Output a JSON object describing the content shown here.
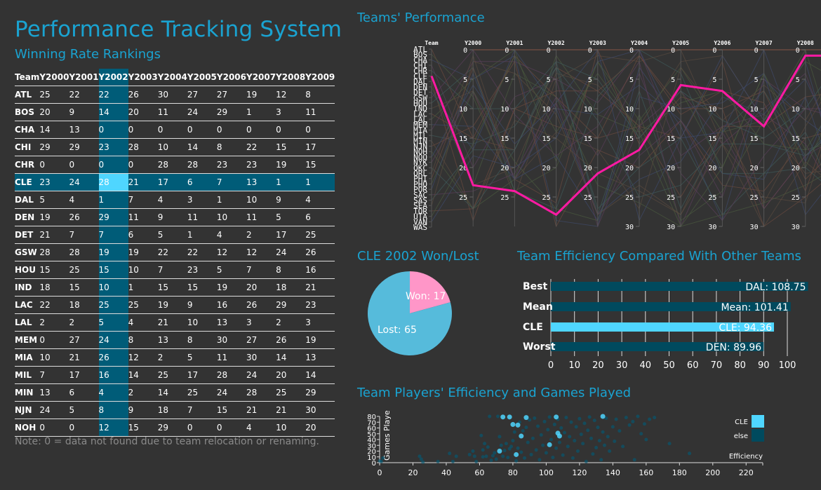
{
  "header": {
    "title": "Performance Tracking System",
    "subtitle": "Winning Rate Rankings"
  },
  "colors": {
    "accent": "#1aa3d1",
    "highlight_dark": "#005c78",
    "highlight_light": "#4fd6ff",
    "selected_line": "#ff1aa3",
    "pie_won": "#ff96c8",
    "pie_lost": "#56bbdb",
    "bar_other": "#004a5e"
  },
  "rankings": {
    "columns": [
      "Team",
      "Y2000",
      "Y2001",
      "Y2002",
      "Y2003",
      "Y2004",
      "Y2005",
      "Y2006",
      "Y2007",
      "Y2008",
      "Y2009"
    ],
    "highlight_column": "Y2002",
    "highlight_team": "CLE",
    "rows": [
      [
        "ATL",
        "25",
        "22",
        "22",
        "26",
        "30",
        "27",
        "27",
        "19",
        "12",
        "8"
      ],
      [
        "BOS",
        "20",
        "9",
        "14",
        "20",
        "11",
        "24",
        "29",
        "1",
        "3",
        "11"
      ],
      [
        "CHA",
        "14",
        "13",
        "0",
        "0",
        "0",
        "0",
        "0",
        "0",
        "0",
        "0"
      ],
      [
        "CHI",
        "29",
        "29",
        "23",
        "28",
        "10",
        "14",
        "8",
        "22",
        "15",
        "17"
      ],
      [
        "CHR",
        "0",
        "0",
        "0",
        "0",
        "28",
        "28",
        "23",
        "23",
        "19",
        "15"
      ],
      [
        "CLE",
        "23",
        "24",
        "28",
        "21",
        "17",
        "6",
        "7",
        "13",
        "1",
        "1"
      ],
      [
        "DAL",
        "5",
        "4",
        "1",
        "7",
        "4",
        "3",
        "1",
        "10",
        "9",
        "4"
      ],
      [
        "DEN",
        "19",
        "26",
        "29",
        "11",
        "9",
        "11",
        "10",
        "11",
        "5",
        "6"
      ],
      [
        "DET",
        "21",
        "7",
        "7",
        "6",
        "5",
        "1",
        "4",
        "2",
        "17",
        "25"
      ],
      [
        "GSW",
        "28",
        "28",
        "19",
        "19",
        "22",
        "22",
        "12",
        "12",
        "24",
        "26"
      ],
      [
        "HOU",
        "15",
        "25",
        "15",
        "10",
        "7",
        "23",
        "5",
        "7",
        "8",
        "16"
      ],
      [
        "IND",
        "18",
        "15",
        "10",
        "1",
        "15",
        "15",
        "19",
        "20",
        "18",
        "21"
      ],
      [
        "LAC",
        "22",
        "18",
        "25",
        "25",
        "19",
        "9",
        "16",
        "26",
        "29",
        "23"
      ],
      [
        "LAL",
        "2",
        "2",
        "5",
        "4",
        "21",
        "10",
        "13",
        "3",
        "2",
        "3"
      ],
      [
        "MEM",
        "0",
        "27",
        "24",
        "8",
        "13",
        "8",
        "30",
        "27",
        "26",
        "19"
      ],
      [
        "MIA",
        "10",
        "21",
        "26",
        "12",
        "2",
        "5",
        "11",
        "30",
        "14",
        "13"
      ],
      [
        "MIL",
        "7",
        "17",
        "16",
        "14",
        "25",
        "17",
        "28",
        "24",
        "20",
        "14"
      ],
      [
        "MIN",
        "13",
        "6",
        "4",
        "2",
        "14",
        "25",
        "24",
        "28",
        "25",
        "29"
      ],
      [
        "NJN",
        "24",
        "5",
        "8",
        "9",
        "18",
        "7",
        "15",
        "21",
        "21",
        "30"
      ],
      [
        "NOH",
        "0",
        "0",
        "12",
        "15",
        "29",
        "0",
        "0",
        "4",
        "10",
        "20"
      ]
    ],
    "note": "Note: 0 = data not found due to team relocation or renaming."
  },
  "chart_data": [
    {
      "type": "line",
      "subtype": "parallel-coordinates",
      "title": "Teams' Performance",
      "axes": [
        "Team",
        "Y2000",
        "Y2001",
        "Y2002",
        "Y2003",
        "Y2004",
        "Y2005",
        "Y2006",
        "Y2007",
        "Y2008",
        "Y2009"
      ],
      "team_axis_labels": [
        "ATL",
        "BOS",
        "CHA",
        "CHI",
        "CHR",
        "CLE",
        "DAL",
        "DEN",
        "DET",
        "GSW",
        "HOU",
        "IND",
        "LAC",
        "LAL",
        "MEM",
        "MIA",
        "MIL",
        "MIN",
        "NJN",
        "NOH",
        "NOO",
        "NYK",
        "OKC",
        "ORL",
        "PHI",
        "PHO",
        "POR",
        "SAC",
        "SAS",
        "SEA",
        "TOR",
        "UTA",
        "VAN",
        "WAS"
      ],
      "year_axis_ticks_short": [
        "0",
        "5",
        "10",
        "15",
        "20",
        "25"
      ],
      "year_axis_ticks_long": [
        "0",
        "5",
        "10",
        "15",
        "20",
        "25",
        "30"
      ],
      "ylim_short": [
        0,
        29
      ],
      "ylim_long": [
        0,
        30
      ],
      "highlight": {
        "name": "CLE",
        "values": [
          23,
          24,
          28,
          21,
          17,
          6,
          7,
          13,
          1,
          1
        ]
      },
      "background_series_count": 33
    },
    {
      "type": "pie",
      "title": "CLE 2002 Won/Lost",
      "slices": [
        {
          "label": "Won",
          "value": 17,
          "display": "Won: 17"
        },
        {
          "label": "Lost",
          "value": 65,
          "display": "Lost: 65"
        }
      ]
    },
    {
      "type": "bar",
      "orientation": "horizontal",
      "title": "Team Efficiency Compared With Other Teams",
      "categories": [
        "Best",
        "Mean",
        "CLE",
        "Worst"
      ],
      "values": [
        108.75,
        101.41,
        94.36,
        89.96
      ],
      "data_labels": [
        "DAL: 108.75",
        "Mean: 101.41",
        "CLE: 94.36",
        "DEN: 89.96"
      ],
      "xlim": [
        0,
        100
      ],
      "xticks": [
        "0",
        "10",
        "20",
        "30",
        "40",
        "50",
        "60",
        "70",
        "80",
        "90",
        "100"
      ],
      "grid": true
    },
    {
      "type": "scatter",
      "title": "Team Players' Efficiency and Games Played",
      "xlabel": "Efficiency",
      "ylabel": "Games Played",
      "xlim": [
        0,
        230
      ],
      "ylim": [
        0,
        82
      ],
      "xticks": [
        "0",
        "20",
        "40",
        "60",
        "80",
        "100",
        "120",
        "140",
        "160",
        "180",
        "200",
        "220"
      ],
      "yticks": [
        "0",
        "10",
        "20",
        "30",
        "40",
        "50",
        "60",
        "70",
        "80"
      ],
      "legend": {
        "position": "top-right",
        "entries": [
          "CLE",
          "else"
        ]
      },
      "series": [
        {
          "name": "CLE",
          "points": [
            [
              74,
              79
            ],
            [
              78,
              79
            ],
            [
              88,
              78
            ],
            [
              106,
              79
            ],
            [
              134,
              80
            ],
            [
              80,
              66
            ],
            [
              83,
              65
            ],
            [
              85,
              46
            ],
            [
              107,
              51
            ],
            [
              108,
              46
            ],
            [
              102,
              31
            ],
            [
              72,
              20
            ],
            [
              82,
              14
            ]
          ]
        },
        {
          "name": "else",
          "points": [
            [
              1,
              2
            ],
            [
              2,
              8
            ],
            [
              0,
              3
            ],
            [
              24,
              11
            ],
            [
              25,
              6
            ],
            [
              26,
              1
            ],
            [
              35,
              2
            ],
            [
              42,
              16
            ],
            [
              44,
              2
            ],
            [
              46,
              11
            ],
            [
              54,
              14
            ],
            [
              56,
              20
            ],
            [
              57,
              11
            ],
            [
              58,
              2
            ],
            [
              61,
              47
            ],
            [
              62,
              10
            ],
            [
              62,
              22
            ],
            [
              63,
              33
            ],
            [
              64,
              11
            ],
            [
              65,
              27
            ],
            [
              66,
              80
            ],
            [
              67,
              4
            ],
            [
              68,
              12
            ],
            [
              69,
              17
            ],
            [
              70,
              6
            ],
            [
              71,
              80
            ],
            [
              72,
              45
            ],
            [
              73,
              30
            ],
            [
              74,
              11
            ],
            [
              75,
              21
            ],
            [
              76,
              33
            ],
            [
              77,
              9
            ],
            [
              78,
              24
            ],
            [
              79,
              28
            ],
            [
              80,
              38
            ],
            [
              81,
              53
            ],
            [
              82,
              3
            ],
            [
              83,
              25
            ],
            [
              84,
              70
            ],
            [
              85,
              18
            ],
            [
              86,
              55
            ],
            [
              87,
              8
            ],
            [
              88,
              61
            ],
            [
              89,
              35
            ],
            [
              90,
              74
            ],
            [
              91,
              14
            ],
            [
              92,
              42
            ],
            [
              93,
              77
            ],
            [
              94,
              22
            ],
            [
              95,
              63
            ],
            [
              96,
              5
            ],
            [
              97,
              48
            ],
            [
              98,
              30
            ],
            [
              99,
              71
            ],
            [
              100,
              17
            ],
            [
              101,
              57
            ],
            [
              102,
              79
            ],
            [
              103,
              40
            ],
            [
              104,
              9
            ],
            [
              105,
              66
            ],
            [
              106,
              25
            ],
            [
              107,
              75
            ],
            [
              108,
              35
            ],
            [
              109,
              60
            ],
            [
              110,
              13
            ],
            [
              111,
              52
            ],
            [
              112,
              78
            ],
            [
              113,
              28
            ],
            [
              114,
              45
            ],
            [
              115,
              70
            ],
            [
              116,
              8
            ],
            [
              117,
              38
            ],
            [
              118,
              62
            ],
            [
              119,
              20
            ],
            [
              120,
              76
            ],
            [
              121,
              49
            ],
            [
              122,
              33
            ],
            [
              123,
              68
            ],
            [
              124,
              2
            ],
            [
              125,
              56
            ],
            [
              126,
              79
            ],
            [
              127,
              42
            ],
            [
              128,
              15
            ],
            [
              129,
              73
            ],
            [
              130,
              26
            ],
            [
              131,
              61
            ],
            [
              132,
              38
            ],
            [
              133,
              5
            ],
            [
              134,
              53
            ],
            [
              135,
              30
            ],
            [
              136,
              77
            ],
            [
              137,
              45
            ],
            [
              138,
              20
            ],
            [
              140,
              62
            ],
            [
              141,
              37
            ],
            [
              142,
              75
            ],
            [
              144,
              55
            ],
            [
              146,
              28
            ],
            [
              148,
              78
            ],
            [
              150,
              65
            ],
            [
              152,
              71
            ],
            [
              153,
              5
            ],
            [
              155,
              80
            ],
            [
              157,
              50
            ],
            [
              159,
              67
            ],
            [
              160,
              40
            ],
            [
              162,
              75
            ],
            [
              165,
              78
            ],
            [
              174,
              33
            ],
            [
              186,
              16
            ]
          ]
        }
      ]
    }
  ]
}
